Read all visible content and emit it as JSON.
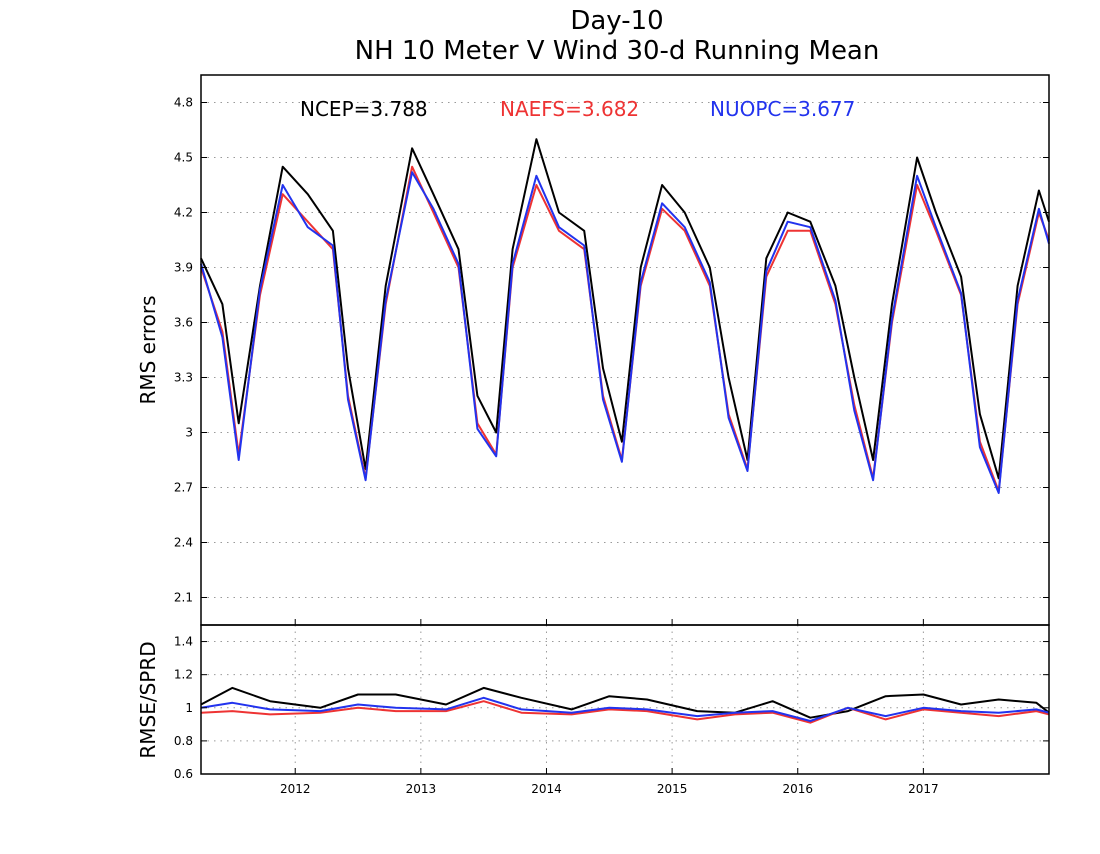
{
  "chart_data": [
    {
      "type": "line",
      "title": "Day-10",
      "subtitle": "NH 10 Meter V Wind 30-d Running Mean",
      "ylabel": "RMS errors",
      "xlim": [
        2011.25,
        2018.0
      ],
      "ylim": [
        1.95,
        4.95
      ],
      "yticks": [
        2.1,
        2.4,
        2.7,
        3,
        3.3,
        3.6,
        3.9,
        4.2,
        4.5,
        4.8
      ],
      "ytick_labels": [
        "2.1",
        "2.4",
        "2.7",
        "3",
        "3.3",
        "3.6",
        "3.9",
        "4.2",
        "4.5",
        "4.8"
      ],
      "grid": true,
      "legend": "top",
      "series": [
        {
          "name": "NCEP",
          "label": "NCEP=3.788",
          "color": "#000000",
          "mean": 3.788,
          "x": [
            2011.25,
            2011.42,
            2011.55,
            2011.72,
            2011.9,
            2012.1,
            2012.3,
            2012.42,
            2012.56,
            2012.72,
            2012.93,
            2013.1,
            2013.3,
            2013.45,
            2013.6,
            2013.73,
            2013.92,
            2014.1,
            2014.3,
            2014.45,
            2014.6,
            2014.75,
            2014.92,
            2015.1,
            2015.3,
            2015.45,
            2015.6,
            2015.75,
            2015.92,
            2016.1,
            2016.3,
            2016.45,
            2016.6,
            2016.75,
            2016.95,
            2017.1,
            2017.3,
            2017.45,
            2017.6,
            2017.75,
            2017.92,
            2018.0
          ],
          "y": [
            3.95,
            3.7,
            3.05,
            3.8,
            4.45,
            4.3,
            4.1,
            3.35,
            2.8,
            3.8,
            4.55,
            4.3,
            4.0,
            3.2,
            3.0,
            4.0,
            4.6,
            4.2,
            4.1,
            3.35,
            2.95,
            3.9,
            4.35,
            4.2,
            3.9,
            3.3,
            2.85,
            3.95,
            4.2,
            4.15,
            3.8,
            3.3,
            2.85,
            3.7,
            4.5,
            4.2,
            3.85,
            3.1,
            2.75,
            3.8,
            4.32,
            4.15
          ]
        },
        {
          "name": "NAEFS",
          "label": "NAEFS=3.682",
          "color": "#ee3333",
          "mean": 3.682,
          "x": [
            2011.25,
            2011.42,
            2011.55,
            2011.72,
            2011.9,
            2012.1,
            2012.3,
            2012.42,
            2012.56,
            2012.72,
            2012.93,
            2013.1,
            2013.3,
            2013.45,
            2013.6,
            2013.73,
            2013.92,
            2014.1,
            2014.3,
            2014.45,
            2014.6,
            2014.75,
            2014.92,
            2015.1,
            2015.3,
            2015.45,
            2015.6,
            2015.75,
            2015.92,
            2016.1,
            2016.3,
            2016.45,
            2016.6,
            2016.75,
            2016.95,
            2017.1,
            2017.3,
            2017.45,
            2017.6,
            2017.75,
            2017.92,
            2018.0
          ],
          "y": [
            3.9,
            3.55,
            2.88,
            3.75,
            4.3,
            4.15,
            4.0,
            3.2,
            2.75,
            3.7,
            4.45,
            4.2,
            3.9,
            3.05,
            2.88,
            3.9,
            4.35,
            4.1,
            4.0,
            3.2,
            2.85,
            3.8,
            4.22,
            4.1,
            3.8,
            3.1,
            2.8,
            3.85,
            4.1,
            4.1,
            3.7,
            3.15,
            2.75,
            3.6,
            4.35,
            4.1,
            3.75,
            2.95,
            2.68,
            3.7,
            4.2,
            4.05
          ]
        },
        {
          "name": "NUOPC",
          "label": "NUOPC=3.677",
          "color": "#2233ee",
          "mean": 3.677,
          "x": [
            2011.25,
            2011.42,
            2011.55,
            2011.72,
            2011.9,
            2012.1,
            2012.3,
            2012.42,
            2012.56,
            2012.72,
            2012.93,
            2013.1,
            2013.3,
            2013.45,
            2013.6,
            2013.73,
            2013.92,
            2014.1,
            2014.3,
            2014.45,
            2014.6,
            2014.75,
            2014.92,
            2015.1,
            2015.3,
            2015.45,
            2015.6,
            2015.75,
            2015.92,
            2016.1,
            2016.3,
            2016.45,
            2016.6,
            2016.75,
            2016.95,
            2017.1,
            2017.3,
            2017.45,
            2017.6,
            2017.75,
            2017.92,
            2018.0
          ],
          "y": [
            3.92,
            3.52,
            2.85,
            3.78,
            4.35,
            4.12,
            4.02,
            3.18,
            2.74,
            3.72,
            4.42,
            4.22,
            3.92,
            3.02,
            2.87,
            3.92,
            4.4,
            4.12,
            4.02,
            3.18,
            2.84,
            3.82,
            4.25,
            4.12,
            3.82,
            3.08,
            2.79,
            3.88,
            4.15,
            4.12,
            3.72,
            3.12,
            2.74,
            3.62,
            4.4,
            4.12,
            3.76,
            2.92,
            2.67,
            3.72,
            4.22,
            4.03
          ]
        }
      ]
    },
    {
      "type": "line",
      "ylabel": "RMSE/SPRD",
      "xlim": [
        2011.25,
        2018.0
      ],
      "ylim": [
        0.6,
        1.5
      ],
      "yticks": [
        0.6,
        0.8,
        1,
        1.2,
        1.4
      ],
      "ytick_labels": [
        "0.6",
        "0.8",
        "1",
        "1.2",
        "1.4"
      ],
      "xticks": [
        2012,
        2013,
        2014,
        2015,
        2016,
        2017
      ],
      "xtick_labels": [
        "2012",
        "2013",
        "2014",
        "2015",
        "2016",
        "2017"
      ],
      "grid": true,
      "series": [
        {
          "name": "NCEP",
          "color": "#000000",
          "x": [
            2011.25,
            2011.5,
            2011.8,
            2012.2,
            2012.5,
            2012.8,
            2013.2,
            2013.5,
            2013.8,
            2014.2,
            2014.5,
            2014.8,
            2015.2,
            2015.5,
            2015.8,
            2016.1,
            2016.4,
            2016.7,
            2017.0,
            2017.3,
            2017.6,
            2017.9,
            2018.0
          ],
          "y": [
            1.02,
            1.12,
            1.04,
            1.0,
            1.08,
            1.08,
            1.02,
            1.12,
            1.06,
            0.99,
            1.07,
            1.05,
            0.98,
            0.97,
            1.04,
            0.94,
            0.98,
            1.07,
            1.08,
            1.02,
            1.05,
            1.03,
            0.97
          ]
        },
        {
          "name": "NAEFS",
          "color": "#ee3333",
          "x": [
            2011.25,
            2011.5,
            2011.8,
            2012.2,
            2012.5,
            2012.8,
            2013.2,
            2013.5,
            2013.8,
            2014.2,
            2014.5,
            2014.8,
            2015.2,
            2015.5,
            2015.8,
            2016.1,
            2016.4,
            2016.7,
            2017.0,
            2017.3,
            2017.6,
            2017.9,
            2018.0
          ],
          "y": [
            0.97,
            0.98,
            0.96,
            0.97,
            1.0,
            0.98,
            0.98,
            1.04,
            0.97,
            0.96,
            0.99,
            0.98,
            0.93,
            0.96,
            0.97,
            0.91,
            1.0,
            0.93,
            0.99,
            0.97,
            0.95,
            0.98,
            0.96
          ]
        },
        {
          "name": "NUOPC",
          "color": "#2233ee",
          "x": [
            2011.25,
            2011.5,
            2011.8,
            2012.2,
            2012.5,
            2012.8,
            2013.2,
            2013.5,
            2013.8,
            2014.2,
            2014.5,
            2014.8,
            2015.2,
            2015.5,
            2015.8,
            2016.1,
            2016.4,
            2016.7,
            2017.0,
            2017.3,
            2017.6,
            2017.9,
            2018.0
          ],
          "y": [
            1.0,
            1.03,
            0.99,
            0.98,
            1.02,
            1.0,
            0.99,
            1.06,
            0.99,
            0.97,
            1.0,
            0.99,
            0.95,
            0.97,
            0.98,
            0.92,
            1.0,
            0.95,
            1.0,
            0.98,
            0.97,
            0.99,
            0.97
          ]
        }
      ]
    }
  ]
}
